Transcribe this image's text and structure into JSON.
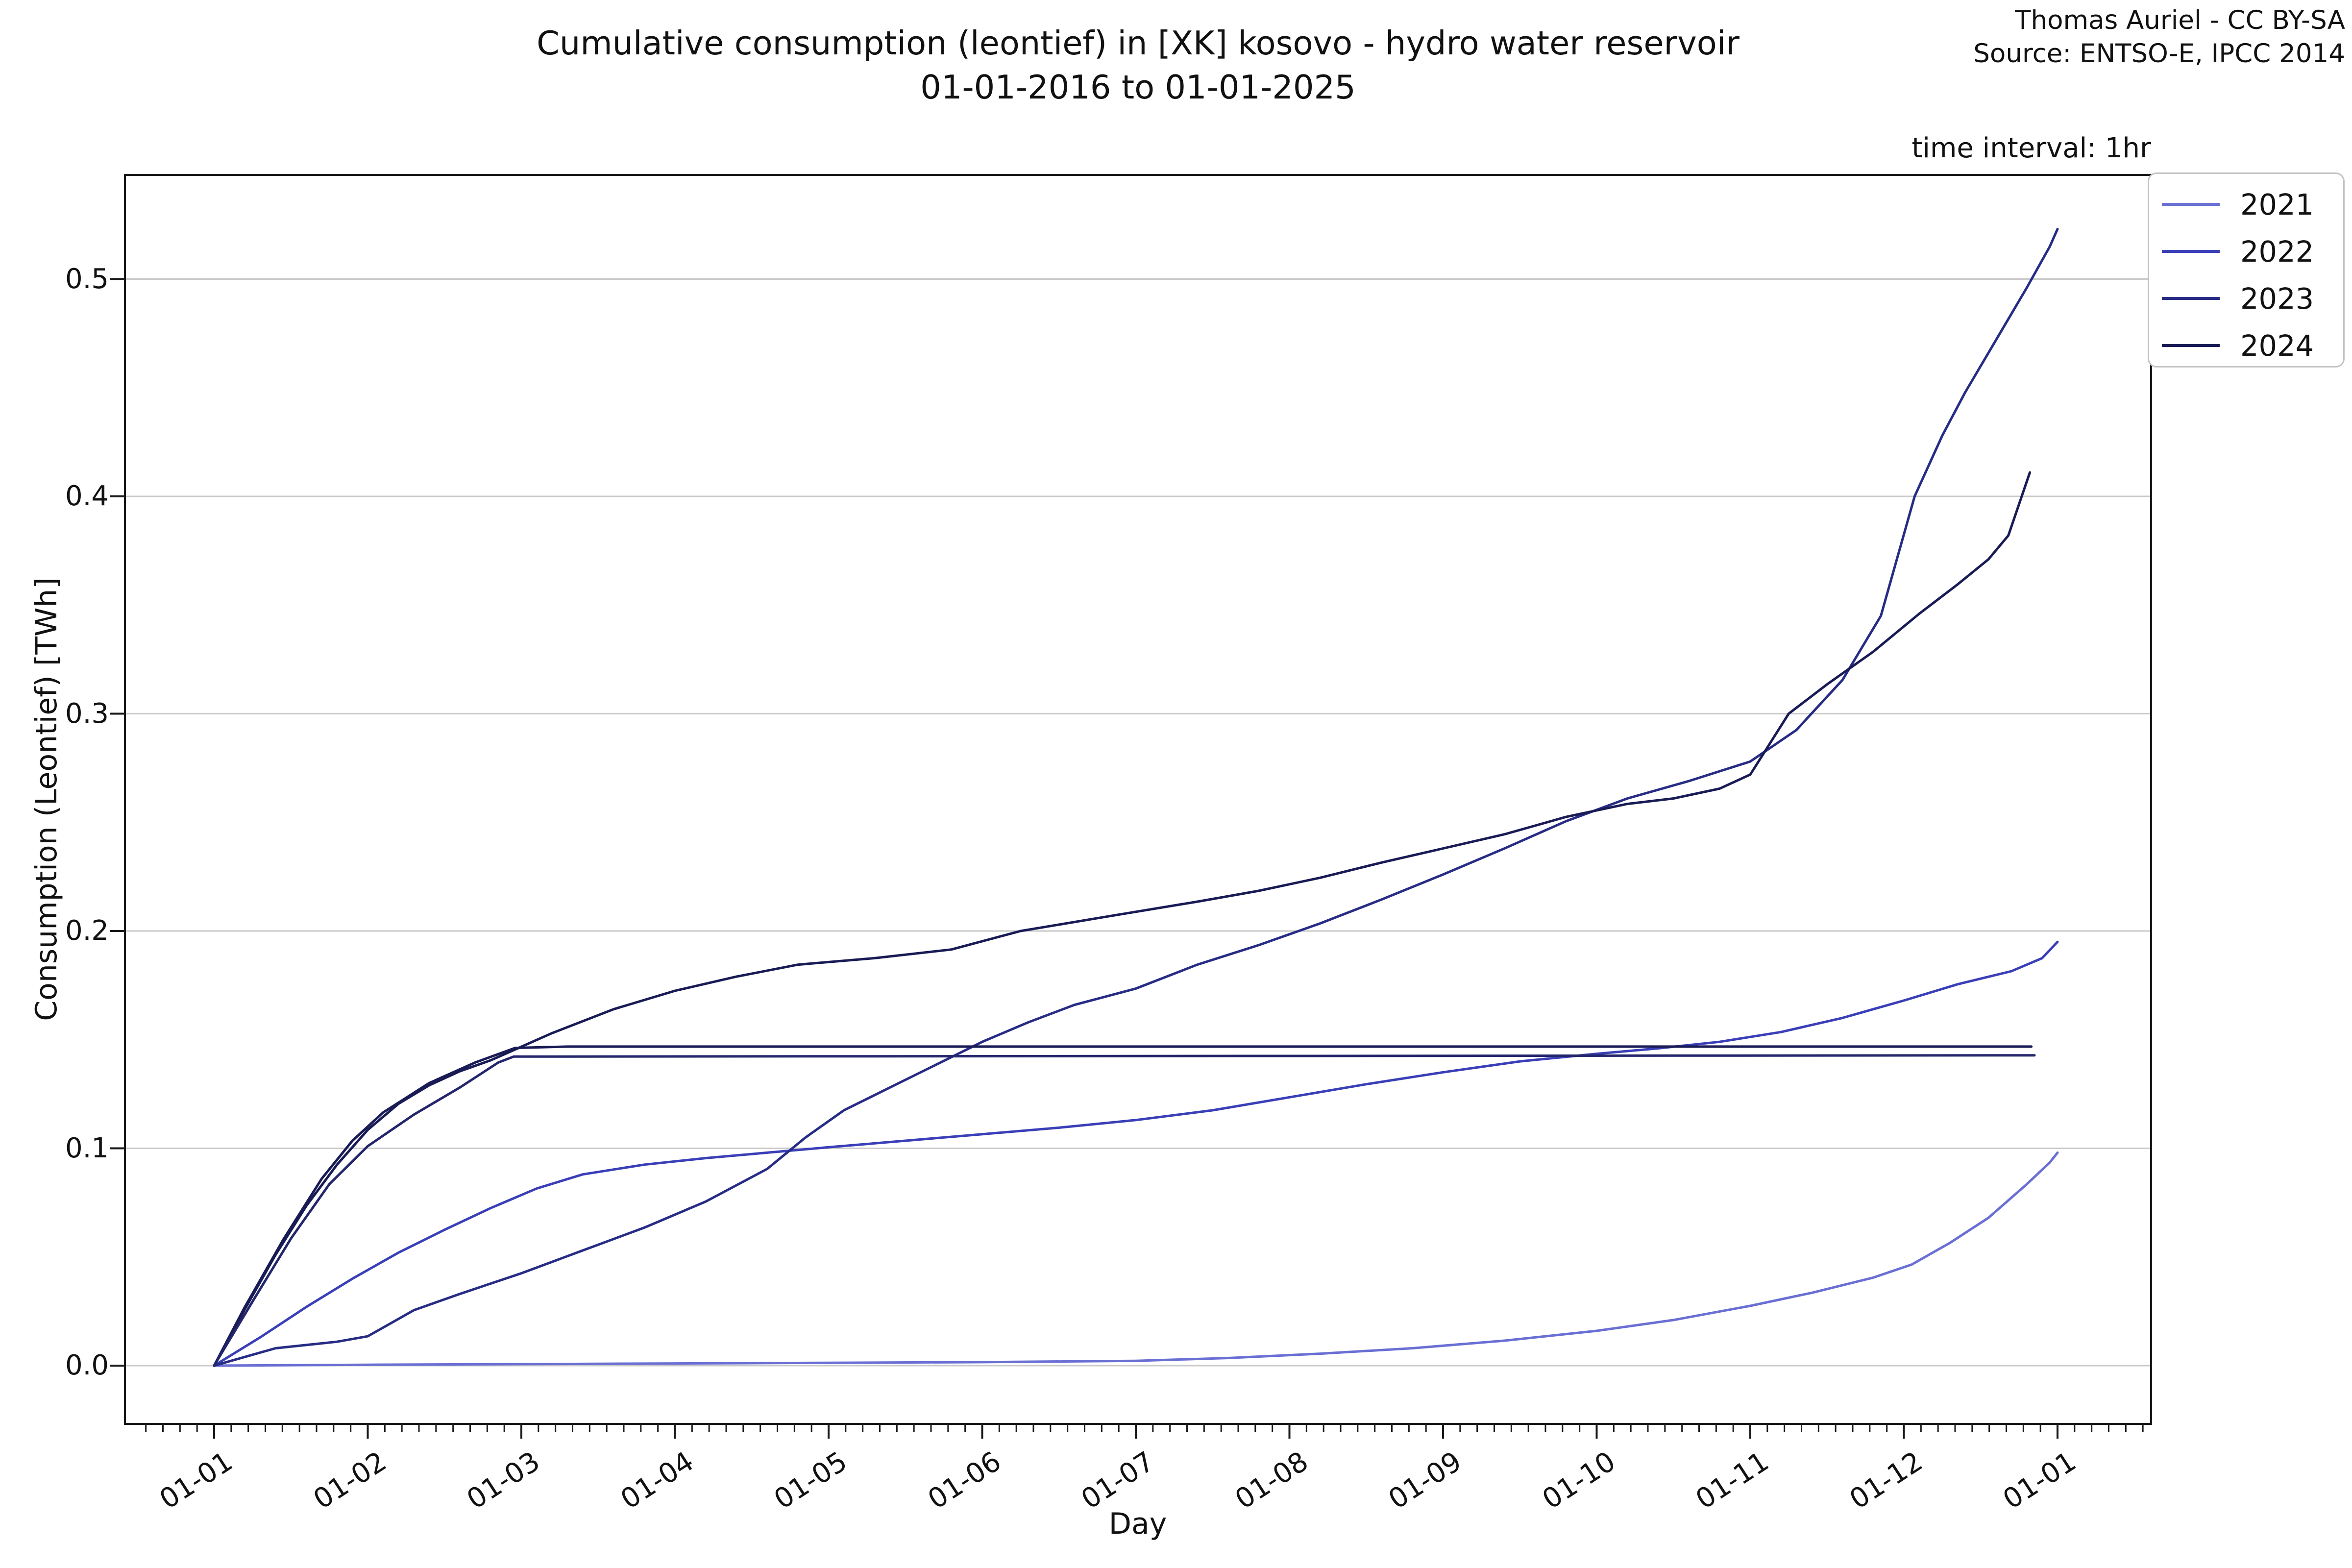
{
  "header": {
    "title_line1": "Cumulative consumption (leontief) in [XK] kosovo - hydro water reservoir",
    "title_line2": "01-01-2016 to 01-01-2025",
    "attribution_line1": "Thomas Auriel - CC BY-SA",
    "attribution_line2": "Source: ENTSO-E, IPCC 2014",
    "interval_note": "time interval: 1hr"
  },
  "chart_data": {
    "type": "line",
    "title": "Cumulative consumption (leontief) in [XK] kosovo - hydro water reservoir 01-01-2016 to 01-01-2025",
    "xlabel": "Day",
    "ylabel": "Consumption (Leontief) [TWh]",
    "x_tick_labels": [
      "01-01",
      "01-02",
      "01-03",
      "01-04",
      "01-05",
      "01-06",
      "01-07",
      "01-08",
      "01-09",
      "01-10",
      "01-11",
      "01-12",
      "01-01"
    ],
    "y_ticks": [
      0.0,
      0.1,
      0.2,
      0.3,
      0.4,
      0.5
    ],
    "y_tick_labels": [
      "0.0",
      "0.1",
      "0.2",
      "0.3",
      "0.4",
      "0.5"
    ],
    "x_range_months": [
      0,
      12
    ],
    "ylim": [
      -0.027,
      0.548
    ],
    "grid": "horizontal-only",
    "legend_position": "upper right outside",
    "series": [
      {
        "name": "2021",
        "color": "#6a6fd4",
        "in_legend": true,
        "points": [
          [
            0,
            0
          ],
          [
            1,
            0.0004
          ],
          [
            2,
            0.0007
          ],
          [
            3,
            0.001
          ],
          [
            4,
            0.0013
          ],
          [
            5,
            0.0016
          ],
          [
            6,
            0.0022
          ],
          [
            6.6,
            0.0035
          ],
          [
            7.2,
            0.0055
          ],
          [
            7.8,
            0.008
          ],
          [
            8.4,
            0.0115
          ],
          [
            9,
            0.016
          ],
          [
            9.5,
            0.021
          ],
          [
            10,
            0.0275
          ],
          [
            10.4,
            0.0335
          ],
          [
            10.8,
            0.0405
          ],
          [
            11.05,
            0.0465
          ],
          [
            11.3,
            0.0565
          ],
          [
            11.55,
            0.068
          ],
          [
            11.8,
            0.0835
          ],
          [
            11.95,
            0.0935
          ],
          [
            12,
            0.098
          ]
        ]
      },
      {
        "name": "2022",
        "color": "#3a3fb8",
        "in_legend": true,
        "points": [
          [
            0,
            0
          ],
          [
            0.3,
            0.013
          ],
          [
            0.6,
            0.027
          ],
          [
            0.9,
            0.04
          ],
          [
            1.2,
            0.052
          ],
          [
            1.5,
            0.0625
          ],
          [
            1.8,
            0.0725
          ],
          [
            2.1,
            0.0815
          ],
          [
            2.4,
            0.088
          ],
          [
            2.8,
            0.0925
          ],
          [
            3.2,
            0.0955
          ],
          [
            3.6,
            0.098
          ],
          [
            4,
            0.1005
          ],
          [
            4.5,
            0.1035
          ],
          [
            5,
            0.1065
          ],
          [
            5.5,
            0.1095
          ],
          [
            6,
            0.113
          ],
          [
            6.5,
            0.1175
          ],
          [
            7,
            0.1235
          ],
          [
            7.5,
            0.1295
          ],
          [
            8,
            0.135
          ],
          [
            8.5,
            0.14
          ],
          [
            9,
            0.1435
          ],
          [
            9.4,
            0.146
          ],
          [
            9.8,
            0.149
          ],
          [
            10.2,
            0.1535
          ],
          [
            10.6,
            0.16
          ],
          [
            11,
            0.168
          ],
          [
            11.35,
            0.1755
          ],
          [
            11.7,
            0.1815
          ],
          [
            11.9,
            0.1875
          ],
          [
            12,
            0.195
          ]
        ]
      },
      {
        "name": "2023",
        "color": "#272c85",
        "in_legend": true,
        "points": [
          [
            0,
            0
          ],
          [
            0.4,
            0.008
          ],
          [
            0.8,
            0.011
          ],
          [
            1,
            0.0135
          ],
          [
            1.3,
            0.0255
          ],
          [
            1.6,
            0.033
          ],
          [
            2,
            0.0425
          ],
          [
            2.4,
            0.053
          ],
          [
            2.8,
            0.0635
          ],
          [
            3.2,
            0.0755
          ],
          [
            3.6,
            0.0905
          ],
          [
            3.85,
            0.105
          ],
          [
            4.1,
            0.1175
          ],
          [
            4.4,
            0.128
          ],
          [
            4.7,
            0.1385
          ],
          [
            5,
            0.149
          ],
          [
            5.3,
            0.158
          ],
          [
            5.6,
            0.166
          ],
          [
            6,
            0.1735
          ],
          [
            6.4,
            0.1845
          ],
          [
            6.8,
            0.1935
          ],
          [
            7.2,
            0.2035
          ],
          [
            7.6,
            0.2145
          ],
          [
            8,
            0.226
          ],
          [
            8.4,
            0.238
          ],
          [
            8.8,
            0.2505
          ],
          [
            9.2,
            0.261
          ],
          [
            9.6,
            0.269
          ],
          [
            10,
            0.278
          ],
          [
            10.3,
            0.2925
          ],
          [
            10.6,
            0.3155
          ],
          [
            10.85,
            0.345
          ],
          [
            11.07,
            0.4
          ],
          [
            11.25,
            0.428
          ],
          [
            11.4,
            0.448
          ],
          [
            11.6,
            0.472
          ],
          [
            11.8,
            0.496
          ],
          [
            11.95,
            0.515
          ],
          [
            12,
            0.523
          ]
        ]
      },
      {
        "name": "2024",
        "color": "#191b55",
        "in_legend": true,
        "points": [
          [
            0,
            0
          ],
          [
            0.2,
            0.026
          ],
          [
            0.4,
            0.051
          ],
          [
            0.6,
            0.0735
          ],
          [
            0.8,
            0.0925
          ],
          [
            1,
            0.1085
          ],
          [
            1.2,
            0.1205
          ],
          [
            1.4,
            0.129
          ],
          [
            1.6,
            0.1355
          ],
          [
            1.8,
            0.1405
          ],
          [
            1.96,
            0.1455
          ],
          [
            2.2,
            0.153
          ],
          [
            2.6,
            0.164
          ],
          [
            3,
            0.1725
          ],
          [
            3.4,
            0.179
          ],
          [
            3.8,
            0.1845
          ],
          [
            4.3,
            0.1875
          ],
          [
            4.8,
            0.1915
          ],
          [
            5.25,
            0.2
          ],
          [
            5.8,
            0.2065
          ],
          [
            6.4,
            0.2135
          ],
          [
            6.8,
            0.2185
          ],
          [
            7.2,
            0.2245
          ],
          [
            7.6,
            0.2315
          ],
          [
            8,
            0.238
          ],
          [
            8.4,
            0.2445
          ],
          [
            8.8,
            0.2525
          ],
          [
            9.2,
            0.2585
          ],
          [
            9.5,
            0.261
          ],
          [
            9.8,
            0.2655
          ],
          [
            10,
            0.272
          ],
          [
            10.25,
            0.3
          ],
          [
            10.5,
            0.3135
          ],
          [
            10.8,
            0.3285
          ],
          [
            11.1,
            0.346
          ],
          [
            11.35,
            0.3595
          ],
          [
            11.55,
            0.371
          ],
          [
            11.68,
            0.382
          ],
          [
            11.82,
            0.411
          ]
        ]
      }
    ],
    "unlabeled_flat_lines": [
      {
        "name": "flat-dark-line-upper",
        "color": "#191b55",
        "flat_value": 0.1468,
        "points": [
          [
            0,
            0
          ],
          [
            0.2,
            0.027
          ],
          [
            0.45,
            0.058
          ],
          [
            0.7,
            0.086
          ],
          [
            0.9,
            0.1035
          ],
          [
            1.1,
            0.1165
          ],
          [
            1.4,
            0.13
          ],
          [
            1.7,
            0.1395
          ],
          [
            1.96,
            0.1462
          ],
          [
            2.3,
            0.1468
          ],
          [
            11.83,
            0.1468
          ]
        ]
      },
      {
        "name": "flat-dark-line-lower",
        "color": "#23266b",
        "flat_value": 0.1428,
        "points": [
          [
            0,
            0
          ],
          [
            0.25,
            0.0295
          ],
          [
            0.5,
            0.0585
          ],
          [
            0.75,
            0.0835
          ],
          [
            1,
            0.101
          ],
          [
            1.3,
            0.1155
          ],
          [
            1.6,
            0.128
          ],
          [
            1.85,
            0.1395
          ],
          [
            1.95,
            0.1422
          ],
          [
            11.85,
            0.1428
          ]
        ]
      }
    ]
  }
}
